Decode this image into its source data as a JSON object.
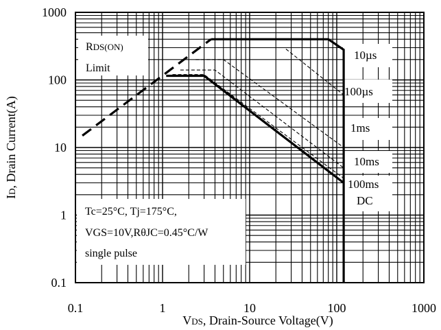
{
  "chart_data": {
    "type": "line",
    "scale": {
      "x": "log",
      "y": "log"
    },
    "xlim": [
      0.1,
      1000
    ],
    "ylim": [
      0.1,
      1000
    ],
    "x_ticks": [
      "0.1",
      "1",
      "10",
      "100",
      "1000"
    ],
    "y_ticks": [
      "0.1",
      "1",
      "10",
      "100",
      "1000"
    ],
    "xlabel": {
      "main": "V",
      "sub": "DS",
      "rest": ", Drain-Source Voltage(V)"
    },
    "ylabel": {
      "main": "I",
      "sub": "D",
      "rest": ", Drain Current(A)"
    },
    "grid": true,
    "rds_on_label": {
      "line1_main": "R",
      "line1_sub": "DS(ON)",
      "line2": "Limit"
    },
    "conditions": {
      "line1": "Tc=25°C, Tj=175°C,",
      "line2": "VGS=10V,RθJC=0.45°C/W",
      "line3": "single pulse"
    },
    "rds_on_limit": {
      "name": "",
      "x": [
        0.12,
        3.6
      ],
      "y": [
        15,
        400
      ]
    },
    "series": [
      {
        "name": "10µs",
        "x": [
          3.6,
          80,
          120,
          120
        ],
        "y": [
          400,
          400,
          280,
          0.1
        ]
      },
      {
        "name": "100µs",
        "x": [
          3.0,
          25,
          120
        ],
        "y": [
          300,
          300,
          60
        ]
      },
      {
        "name": "1ms",
        "x": [
          2.4,
          5,
          120
        ],
        "y": [
          200,
          200,
          10
        ]
      },
      {
        "name": "10ms",
        "x": [
          1.6,
          4,
          120
        ],
        "y": [
          140,
          140,
          5
        ]
      },
      {
        "name": "100ms",
        "x": [
          1.3,
          3,
          120
        ],
        "y": [
          120,
          120,
          3.5
        ]
      },
      {
        "name": "DC",
        "x": [
          1.1,
          3,
          120
        ],
        "y": [
          115,
          115,
          3
        ]
      }
    ]
  }
}
